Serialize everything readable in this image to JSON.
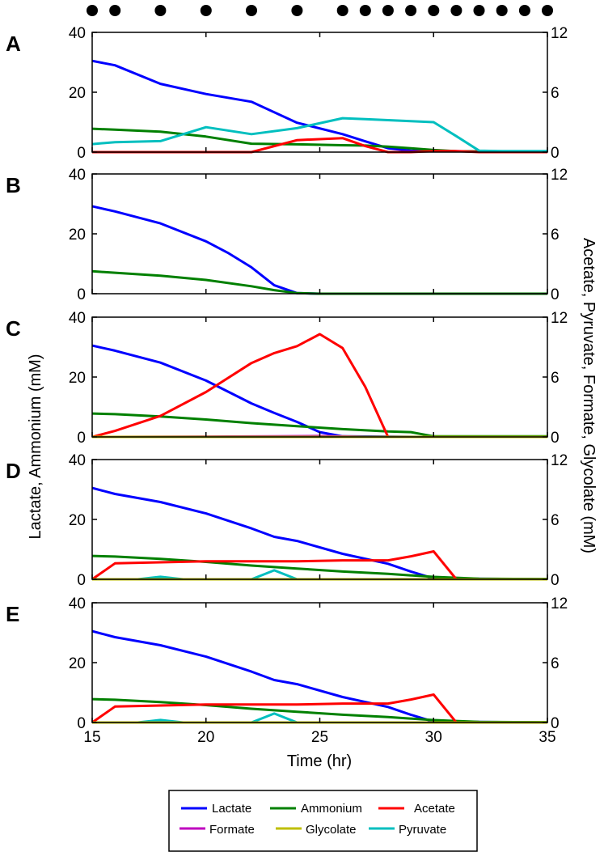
{
  "figure": {
    "sample_marker_times": [
      15,
      16,
      18,
      20,
      22,
      24,
      26,
      27,
      28,
      29,
      30,
      31,
      32,
      33,
      34,
      35
    ],
    "shared": {
      "xlabel": "Time (hr)",
      "ylabel_left": "Lactate, Ammonium (mM)",
      "ylabel_right": "Acetate, Pyruvate, Formate, Glycolate (mM)",
      "xlim": [
        15,
        35
      ],
      "xticks": [
        "15",
        "20",
        "25",
        "30",
        "35"
      ],
      "ylim_left": [
        0,
        40
      ],
      "yticks_left": [
        "0",
        "20",
        "40"
      ],
      "ylim_right": [
        0,
        12
      ],
      "yticks_right": [
        "0",
        "6",
        "12"
      ]
    },
    "legend": [
      {
        "name": "Lactate",
        "color": "#0000ff"
      },
      {
        "name": "Ammonium",
        "color": "#008000"
      },
      {
        "name": "Acetate",
        "color": "#ff0000"
      },
      {
        "name": "Formate",
        "color": "#bf00bf"
      },
      {
        "name": "Glycolate",
        "color": "#bfbf00"
      },
      {
        "name": "Pyruvate",
        "color": "#00bfbf"
      }
    ]
  },
  "chart_data": [
    {
      "type": "line",
      "panel": "A",
      "xlabel": "",
      "ylabel": "",
      "xlim": [
        15,
        35
      ],
      "ylim": [
        0,
        40
      ],
      "ylim_right": [
        0,
        12
      ],
      "series": [
        {
          "name": "Lactate",
          "axis": "left",
          "color": "#0000ff",
          "x": [
            15,
            16,
            18,
            20,
            22,
            24,
            26,
            27,
            28,
            29,
            30,
            31,
            32,
            33,
            34,
            35
          ],
          "y": [
            30.5,
            29,
            22.8,
            19.4,
            16.8,
            9.8,
            6,
            3.6,
            1.3,
            0.5,
            0.4,
            0.3,
            0.2,
            0.2,
            0.2,
            0.2
          ]
        },
        {
          "name": "Ammonium",
          "axis": "left",
          "color": "#008000",
          "x": [
            15,
            16,
            18,
            20,
            22,
            24,
            26,
            27,
            28,
            29,
            30,
            31,
            32,
            33,
            34,
            35
          ],
          "y": [
            7.8,
            7.5,
            6.8,
            5.2,
            2.8,
            2.6,
            2.3,
            2.2,
            1.8,
            1.3,
            0.7,
            0.3,
            0.2,
            0.2,
            0.2,
            0.2
          ]
        },
        {
          "name": "Acetate",
          "axis": "right",
          "color": "#ff0000",
          "x": [
            15,
            16,
            18,
            20,
            22,
            24,
            26,
            27,
            28,
            29,
            30,
            31,
            32,
            33,
            34,
            35
          ],
          "y": [
            0,
            0,
            0,
            0,
            0,
            1.2,
            1.4,
            0.6,
            0,
            0,
            0.1,
            0.1,
            0,
            0,
            0,
            0
          ]
        },
        {
          "name": "Pyruvate",
          "axis": "right",
          "color": "#00bfbf",
          "x": [
            15,
            16,
            18,
            20,
            22,
            24,
            26,
            27,
            28,
            29,
            30,
            31,
            32,
            33,
            34,
            35
          ],
          "y": [
            0.8,
            1.0,
            1.1,
            2.5,
            1.8,
            2.4,
            3.4,
            3.3,
            3.2,
            3.1,
            3.0,
            1.6,
            0.15,
            0.1,
            0.1,
            0.1
          ]
        }
      ]
    },
    {
      "type": "line",
      "panel": "B",
      "xlabel": "",
      "ylabel": "",
      "xlim": [
        15,
        35
      ],
      "ylim": [
        0,
        40
      ],
      "ylim_right": [
        0,
        12
      ],
      "series": [
        {
          "name": "Lactate",
          "axis": "left",
          "color": "#0000ff",
          "x": [
            15,
            16,
            18,
            20,
            21,
            22,
            23,
            24,
            25,
            30,
            35
          ],
          "y": [
            29.2,
            27.5,
            23.5,
            17.5,
            13.5,
            8.8,
            2.8,
            0.2,
            0,
            0,
            0
          ]
        },
        {
          "name": "Ammonium",
          "axis": "left",
          "color": "#008000",
          "x": [
            15,
            16,
            18,
            20,
            22,
            23,
            24,
            25,
            30,
            35
          ],
          "y": [
            7.5,
            7.0,
            6.0,
            4.6,
            2.5,
            1.2,
            0.2,
            0,
            0,
            0
          ]
        }
      ]
    },
    {
      "type": "line",
      "panel": "C",
      "xlabel": "",
      "ylabel": "",
      "xlim": [
        15,
        35
      ],
      "ylim": [
        0,
        40
      ],
      "ylim_right": [
        0,
        12
      ],
      "series": [
        {
          "name": "Lactate",
          "axis": "left",
          "color": "#0000ff",
          "x": [
            15,
            16,
            18,
            20,
            22,
            23,
            24,
            25,
            26,
            30,
            35
          ],
          "y": [
            30.5,
            28.8,
            24.8,
            18.8,
            11.2,
            8,
            5,
            1.6,
            0.2,
            0,
            0
          ]
        },
        {
          "name": "Ammonium",
          "axis": "left",
          "color": "#008000",
          "x": [
            15,
            16,
            18,
            20,
            22,
            24,
            26,
            28,
            29,
            30,
            35
          ],
          "y": [
            7.8,
            7.6,
            6.8,
            5.8,
            4.6,
            3.6,
            2.6,
            1.8,
            1.6,
            0.2,
            0.2
          ]
        },
        {
          "name": "Acetate",
          "axis": "right",
          "color": "#ff0000",
          "x": [
            15,
            16,
            18,
            20,
            22,
            23,
            24,
            25,
            26,
            27,
            28,
            29,
            35
          ],
          "y": [
            0,
            0.6,
            2.1,
            4.5,
            7.4,
            8.4,
            9.1,
            10.3,
            8.9,
            5.0,
            0,
            0,
            0
          ]
        },
        {
          "name": "Formate",
          "axis": "right",
          "color": "#bf00bf",
          "x": [
            15,
            20,
            23,
            25,
            26,
            27,
            35
          ],
          "y": [
            0,
            0.03,
            0.06,
            0.09,
            0.05,
            0,
            0
          ]
        },
        {
          "name": "Glycolate",
          "axis": "right",
          "color": "#bfbf00",
          "x": [
            15,
            35
          ],
          "y": [
            0,
            0
          ]
        }
      ]
    },
    {
      "type": "line",
      "panel": "D",
      "xlabel": "",
      "ylabel": "",
      "xlim": [
        15,
        35
      ],
      "ylim": [
        0,
        40
      ],
      "ylim_right": [
        0,
        12
      ],
      "series": [
        {
          "name": "Lactate",
          "axis": "left",
          "color": "#0000ff",
          "x": [
            15,
            16,
            18,
            20,
            22,
            23,
            24,
            26,
            28,
            29,
            30,
            35
          ],
          "y": [
            30.5,
            28.5,
            25.8,
            22,
            17,
            14.2,
            12.8,
            8.5,
            5.2,
            2.6,
            0.3,
            0
          ]
        },
        {
          "name": "Ammonium",
          "axis": "left",
          "color": "#008000",
          "x": [
            15,
            16,
            18,
            20,
            22,
            24,
            26,
            28,
            30,
            32,
            35
          ],
          "y": [
            7.8,
            7.6,
            6.8,
            5.8,
            4.6,
            3.6,
            2.6,
            1.8,
            0.8,
            0.2,
            0.1
          ]
        },
        {
          "name": "Acetate",
          "axis": "right",
          "color": "#ff0000",
          "x": [
            15,
            16,
            20,
            24,
            26,
            28,
            29,
            30,
            31,
            35
          ],
          "y": [
            0,
            1.6,
            1.8,
            1.8,
            1.9,
            1.9,
            2.3,
            2.8,
            0,
            0
          ]
        },
        {
          "name": "Pyruvate",
          "axis": "right",
          "color": "#00bfbf",
          "x": [
            15,
            17,
            18,
            19,
            22,
            23,
            24,
            35
          ],
          "y": [
            0,
            0,
            0.25,
            0,
            0,
            0.9,
            0,
            0
          ]
        },
        {
          "name": "Glycolate",
          "axis": "right",
          "color": "#bfbf00",
          "x": [
            15,
            35
          ],
          "y": [
            0,
            0
          ]
        }
      ]
    },
    {
      "type": "line",
      "panel": "E",
      "xlabel": "Time (hr)",
      "ylabel": "",
      "xlim": [
        15,
        35
      ],
      "ylim": [
        0,
        40
      ],
      "ylim_right": [
        0,
        12
      ],
      "series": [
        {
          "name": "Lactate",
          "axis": "left",
          "color": "#0000ff",
          "x": [
            15,
            16,
            18,
            20,
            22,
            23,
            24,
            26,
            28,
            29,
            30,
            35
          ],
          "y": [
            30.5,
            28.5,
            25.8,
            22,
            17,
            14.2,
            12.8,
            8.5,
            5.2,
            2.6,
            0.3,
            0
          ]
        },
        {
          "name": "Ammonium",
          "axis": "left",
          "color": "#008000",
          "x": [
            15,
            16,
            18,
            20,
            22,
            24,
            26,
            28,
            30,
            32,
            35
          ],
          "y": [
            7.8,
            7.6,
            6.8,
            5.8,
            4.6,
            3.6,
            2.6,
            1.8,
            0.8,
            0.2,
            0.1
          ]
        },
        {
          "name": "Acetate",
          "axis": "right",
          "color": "#ff0000",
          "x": [
            15,
            16,
            20,
            24,
            26,
            28,
            29,
            30,
            31,
            35
          ],
          "y": [
            0,
            1.6,
            1.8,
            1.8,
            1.9,
            1.9,
            2.3,
            2.8,
            0,
            0
          ]
        },
        {
          "name": "Pyruvate",
          "axis": "right",
          "color": "#00bfbf",
          "x": [
            15,
            17,
            18,
            19,
            22,
            23,
            24,
            35
          ],
          "y": [
            0,
            0,
            0.25,
            0,
            0,
            0.9,
            0,
            0
          ]
        },
        {
          "name": "Glycolate",
          "axis": "right",
          "color": "#bfbf00",
          "x": [
            15,
            35
          ],
          "y": [
            0,
            0
          ]
        }
      ]
    }
  ]
}
